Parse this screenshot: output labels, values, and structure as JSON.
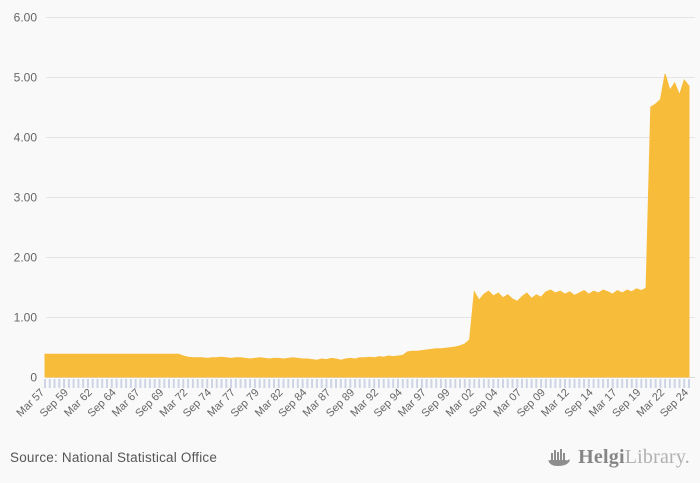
{
  "chart_data": {
    "type": "area",
    "title": "",
    "xlabel": "",
    "ylabel": "",
    "frequency": "semi-annual",
    "x_start_label": "Mar 57",
    "x_end_label": "Sep 24",
    "grid": true,
    "legend": false,
    "ylim": [
      0,
      6.35
    ],
    "area_color": "#F8BC3B",
    "tick_labels": [
      "Mar 57",
      "Sep 59",
      "Mar 62",
      "Sep 64",
      "Mar 67",
      "Sep 69",
      "Mar 72",
      "Sep 74",
      "Mar 77",
      "Sep 79",
      "Mar 82",
      "Sep 84",
      "Mar 87",
      "Sep 89",
      "Mar 92",
      "Sep 94",
      "Mar 97",
      "Sep 99",
      "Mar 02",
      "Sep 04",
      "Mar 07",
      "Sep 09",
      "Mar 12",
      "Sep 14",
      "Mar 17",
      "Sep 19",
      "Mar 22",
      "Sep 24"
    ],
    "y_ticks": [
      {
        "label": "6.00",
        "value": 6
      },
      {
        "label": "5.00",
        "value": 5
      },
      {
        "label": "4.00",
        "value": 4
      },
      {
        "label": "3.00",
        "value": 3
      },
      {
        "label": "2.00",
        "value": 2
      },
      {
        "label": "1.00",
        "value": 1
      },
      {
        "label": "0",
        "value": 0
      }
    ],
    "series": [
      {
        "name": "value",
        "color": "#F8BC3B",
        "values": [
          0.38,
          0.38,
          0.38,
          0.38,
          0.38,
          0.38,
          0.38,
          0.38,
          0.38,
          0.38,
          0.38,
          0.38,
          0.38,
          0.38,
          0.38,
          0.38,
          0.38,
          0.38,
          0.38,
          0.38,
          0.38,
          0.38,
          0.38,
          0.38,
          0.38,
          0.38,
          0.38,
          0.38,
          0.38,
          0.35,
          0.33,
          0.32,
          0.32,
          0.32,
          0.31,
          0.32,
          0.32,
          0.33,
          0.32,
          0.31,
          0.32,
          0.32,
          0.31,
          0.3,
          0.31,
          0.32,
          0.31,
          0.3,
          0.31,
          0.31,
          0.3,
          0.31,
          0.32,
          0.31,
          0.3,
          0.3,
          0.29,
          0.28,
          0.3,
          0.29,
          0.31,
          0.3,
          0.28,
          0.3,
          0.31,
          0.3,
          0.32,
          0.32,
          0.33,
          0.32,
          0.34,
          0.33,
          0.35,
          0.34,
          0.35,
          0.36,
          0.42,
          0.43,
          0.43,
          0.44,
          0.45,
          0.46,
          0.47,
          0.47,
          0.48,
          0.49,
          0.5,
          0.52,
          0.55,
          0.62,
          1.42,
          1.28,
          1.38,
          1.43,
          1.35,
          1.4,
          1.32,
          1.37,
          1.3,
          1.26,
          1.34,
          1.4,
          1.31,
          1.37,
          1.33,
          1.42,
          1.45,
          1.4,
          1.43,
          1.38,
          1.42,
          1.36,
          1.4,
          1.44,
          1.38,
          1.43,
          1.4,
          1.45,
          1.42,
          1.38,
          1.44,
          1.4,
          1.45,
          1.42,
          1.47,
          1.44,
          1.48,
          4.5,
          4.55,
          4.62,
          5.05,
          4.78,
          4.9,
          4.7,
          4.95,
          4.85
        ]
      }
    ]
  },
  "footer": {
    "source": "Source: National Statistical Office",
    "brand": {
      "icon": "helgi-ship-icon",
      "name_primary": "Helgi",
      "name_secondary": "Library."
    }
  },
  "colors": {
    "background": "#f9f9f9",
    "gridline": "#e4e4e4",
    "tick": "#ccd4e6",
    "axis_text": "#666666",
    "source_text": "#565656",
    "brand_gray": "#8d8d8d"
  }
}
